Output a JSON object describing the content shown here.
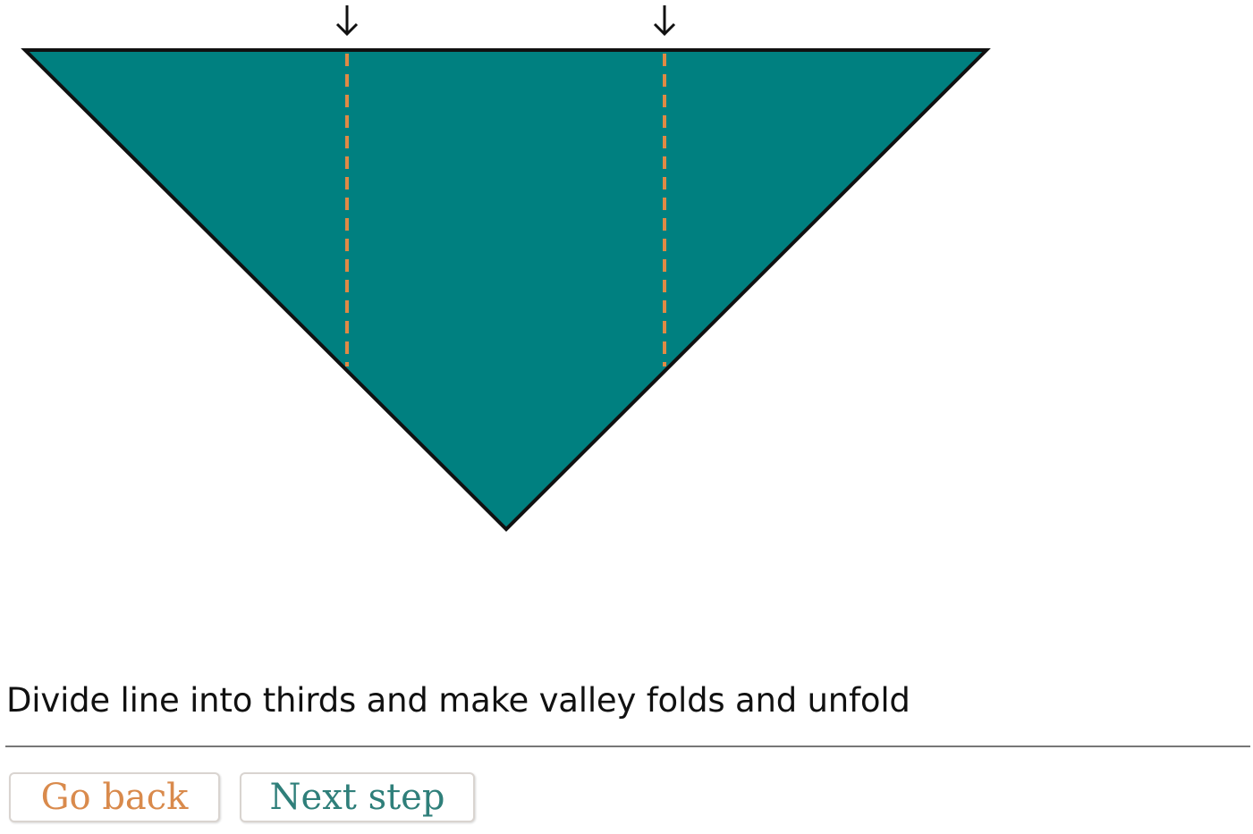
{
  "diagram": {
    "colors": {
      "paper": "#008080",
      "outline": "#111111",
      "fold_line": "#e08a45",
      "arrow": "#111111"
    },
    "icons": [
      "triangle-paper",
      "valley-fold-line",
      "down-arrow-icon"
    ]
  },
  "instruction": {
    "text": "Divide line into thirds and make valley folds and unfold"
  },
  "navigation": {
    "back_label": "Go back",
    "next_label": "Next step"
  }
}
